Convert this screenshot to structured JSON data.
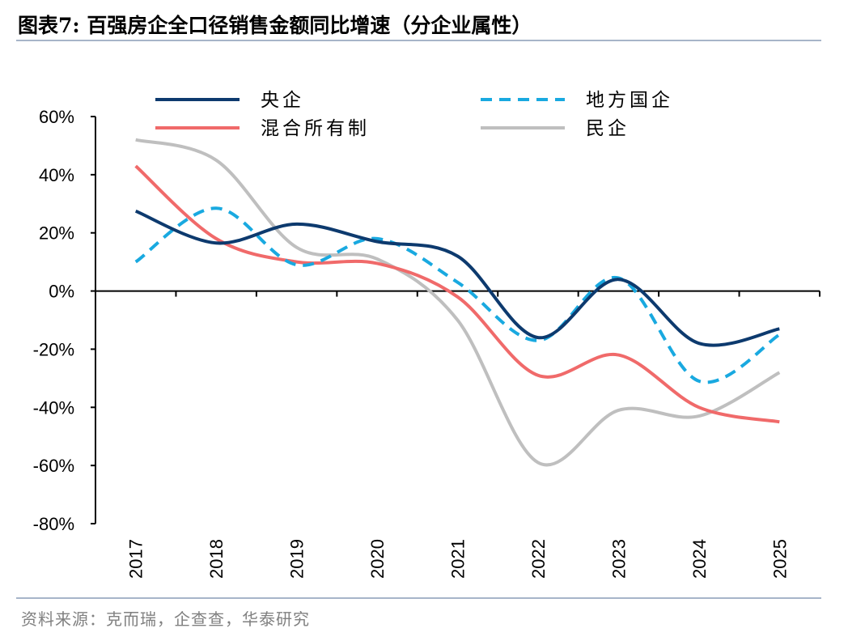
{
  "title": "图表7:  百强房企全口径销售金额同比增速（分企业属性）",
  "source": "资料来源：克而瑞，企查查，华泰研究",
  "chart_data": {
    "type": "line",
    "title": "百强房企全口径销售金额同比增速（分企业属性）",
    "x": [
      "2017",
      "2018",
      "2019",
      "2020",
      "2021",
      "2022",
      "2023",
      "2024",
      "2025"
    ],
    "ylim": [
      -80,
      60
    ],
    "yticks": [
      60,
      40,
      20,
      0,
      -20,
      -40,
      -60,
      -80
    ],
    "ytick_labels": [
      "60%",
      "40%",
      "20%",
      "0%",
      "-20%",
      "-40%",
      "-60%",
      "-80%"
    ],
    "legend_position": "top",
    "series": [
      {
        "name": "央企",
        "color": "#0d3a6e",
        "dash": "solid",
        "values": [
          27.5,
          16.5,
          23,
          17,
          12,
          -16,
          4,
          -18,
          -13
        ]
      },
      {
        "name": "地方国企",
        "color": "#19a9e0",
        "dash": "dashed",
        "values": [
          10,
          28.5,
          9,
          18,
          3,
          -17,
          4.5,
          -31,
          -15
        ]
      },
      {
        "name": "混合所有制",
        "color": "#f06a6a",
        "dash": "solid",
        "values": [
          43,
          18,
          10,
          9.5,
          -2,
          -29,
          -22,
          -40,
          -45
        ]
      },
      {
        "name": "民企",
        "color": "#bfbfbf",
        "dash": "solid",
        "values": [
          52,
          45,
          15,
          11,
          -10,
          -59,
          -41,
          -43,
          -28
        ]
      }
    ]
  }
}
